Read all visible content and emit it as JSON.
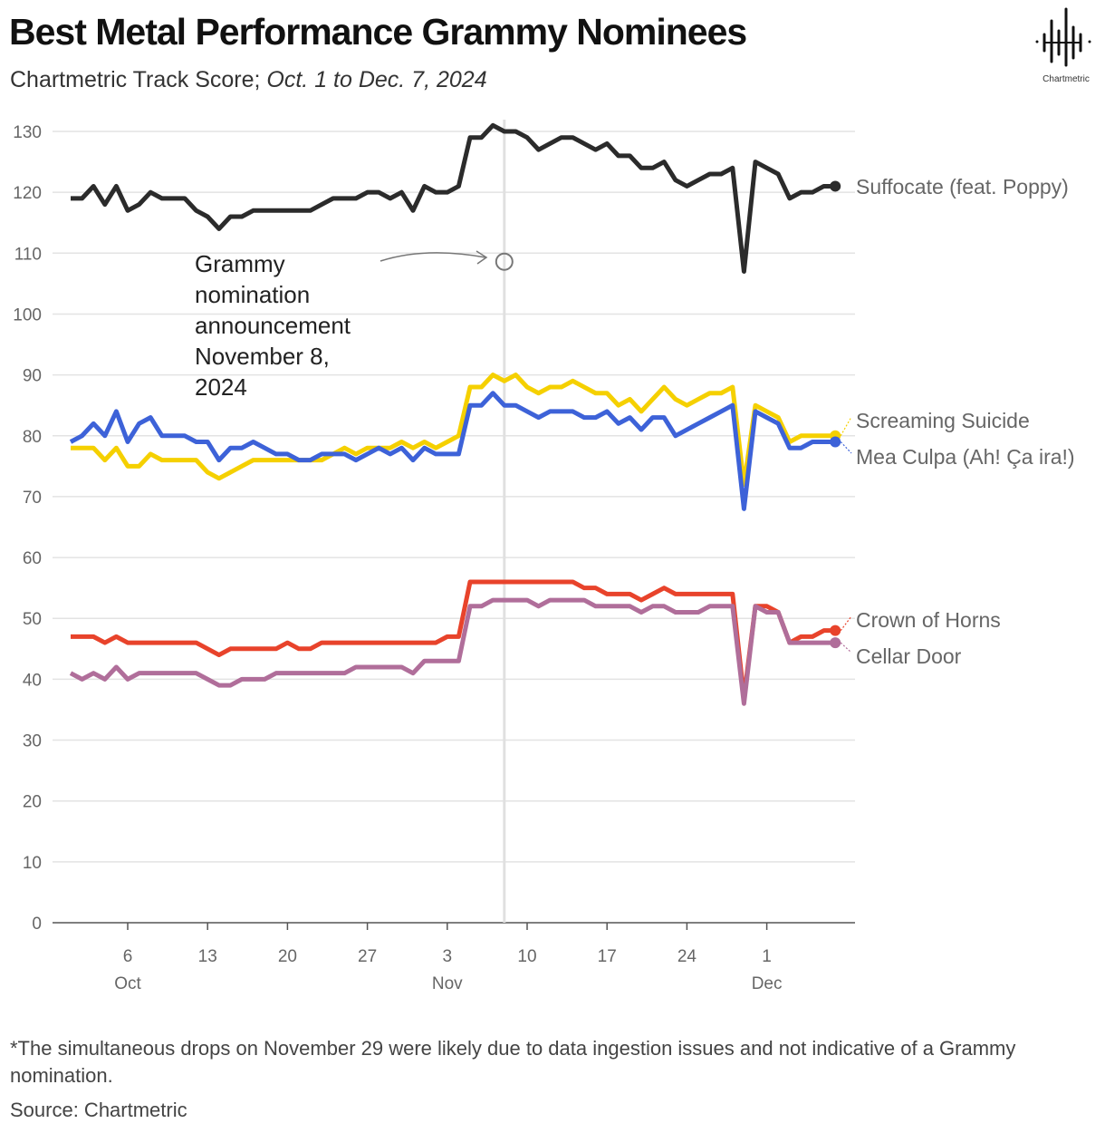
{
  "title": "Best Metal Performance Grammy Nominees",
  "subtitle_prefix": "Chartmetric Track Score; ",
  "subtitle_range": "Oct. 1 to Dec. 7, 2024",
  "logo_text": "Chartmetric",
  "footnote": "*The simultaneous drops on November 29 were likely due to data ingestion issues and not indicative of a Grammy nomination.",
  "source": "Source: Chartmetric",
  "chart_data": {
    "type": "line",
    "x_start": "2024-10-01",
    "x_end": "2024-12-07",
    "ylim": [
      0,
      130
    ],
    "yticks": [
      0,
      10,
      20,
      30,
      40,
      50,
      60,
      70,
      80,
      90,
      100,
      110,
      120,
      130
    ],
    "xticks": [
      {
        "date": "2024-10-06",
        "label": "6",
        "month": "Oct"
      },
      {
        "date": "2024-10-13",
        "label": "13",
        "month": ""
      },
      {
        "date": "2024-10-20",
        "label": "20",
        "month": ""
      },
      {
        "date": "2024-10-27",
        "label": "27",
        "month": ""
      },
      {
        "date": "2024-11-03",
        "label": "3",
        "month": "Nov"
      },
      {
        "date": "2024-11-10",
        "label": "10",
        "month": ""
      },
      {
        "date": "2024-11-17",
        "label": "17",
        "month": ""
      },
      {
        "date": "2024-11-24",
        "label": "24",
        "month": ""
      },
      {
        "date": "2024-12-01",
        "label": "1",
        "month": "Dec"
      }
    ],
    "grid": true,
    "annotation": {
      "date": "2024-11-08",
      "value": 108.6,
      "text": [
        "Grammy",
        "nomination",
        "announcement",
        "November 8,",
        "2024"
      ]
    },
    "series": [
      {
        "name": "Suffocate (feat. Poppy)",
        "color": "#2b2b2b",
        "values": [
          119,
          119,
          121,
          118,
          121,
          117,
          118,
          120,
          119,
          119,
          119,
          117,
          116,
          114,
          116,
          116,
          117,
          117,
          117,
          117,
          117,
          117,
          118,
          119,
          119,
          119,
          120,
          120,
          119,
          120,
          117,
          121,
          120,
          120,
          121,
          129,
          129,
          131,
          130,
          130,
          129,
          127,
          128,
          129,
          129,
          128,
          127,
          128,
          126,
          126,
          124,
          124,
          125,
          122,
          121,
          122,
          123,
          123,
          124,
          107,
          125,
          124,
          123,
          119,
          120,
          120,
          121,
          121
        ]
      },
      {
        "name": "Screaming Suicide",
        "color": "#f5d000",
        "values": [
          78,
          78,
          78,
          76,
          78,
          75,
          75,
          77,
          76,
          76,
          76,
          76,
          74,
          73,
          74,
          75,
          76,
          76,
          76,
          76,
          76,
          76,
          76,
          77,
          78,
          77,
          78,
          78,
          78,
          79,
          78,
          79,
          78,
          79,
          80,
          88,
          88,
          90,
          89,
          90,
          88,
          87,
          88,
          88,
          89,
          88,
          87,
          87,
          85,
          86,
          84,
          86,
          88,
          86,
          85,
          86,
          87,
          87,
          88,
          72,
          85,
          84,
          83,
          79,
          80,
          80,
          80,
          80
        ]
      },
      {
        "name": "Mea Culpa (Ah! Ça ira!)",
        "color": "#3d62d8",
        "values": [
          79,
          80,
          82,
          80,
          84,
          79,
          82,
          83,
          80,
          80,
          80,
          79,
          79,
          76,
          78,
          78,
          79,
          78,
          77,
          77,
          76,
          76,
          77,
          77,
          77,
          76,
          77,
          78,
          77,
          78,
          76,
          78,
          77,
          77,
          77,
          85,
          85,
          87,
          85,
          85,
          84,
          83,
          84,
          84,
          84,
          83,
          83,
          84,
          82,
          83,
          81,
          83,
          83,
          80,
          81,
          82,
          83,
          84,
          85,
          68,
          84,
          83,
          82,
          78,
          78,
          79,
          79,
          79
        ]
      },
      {
        "name": "Crown of Horns",
        "color": "#e8432b",
        "values": [
          47,
          47,
          47,
          46,
          47,
          46,
          46,
          46,
          46,
          46,
          46,
          46,
          45,
          44,
          45,
          45,
          45,
          45,
          45,
          46,
          45,
          45,
          46,
          46,
          46,
          46,
          46,
          46,
          46,
          46,
          46,
          46,
          46,
          47,
          47,
          56,
          56,
          56,
          56,
          56,
          56,
          56,
          56,
          56,
          56,
          55,
          55,
          54,
          54,
          54,
          53,
          54,
          55,
          54,
          54,
          54,
          54,
          54,
          54,
          37,
          52,
          52,
          51,
          46,
          47,
          47,
          48,
          48
        ]
      },
      {
        "name": "Cellar Door",
        "color": "#b06e9a",
        "values": [
          41,
          40,
          41,
          40,
          42,
          40,
          41,
          41,
          41,
          41,
          41,
          41,
          40,
          39,
          39,
          40,
          40,
          40,
          41,
          41,
          41,
          41,
          41,
          41,
          41,
          42,
          42,
          42,
          42,
          42,
          41,
          43,
          43,
          43,
          43,
          52,
          52,
          53,
          53,
          53,
          53,
          52,
          53,
          53,
          53,
          53,
          52,
          52,
          52,
          52,
          51,
          52,
          52,
          51,
          51,
          51,
          52,
          52,
          52,
          36,
          52,
          51,
          51,
          46,
          46,
          46,
          46,
          46
        ]
      }
    ]
  }
}
